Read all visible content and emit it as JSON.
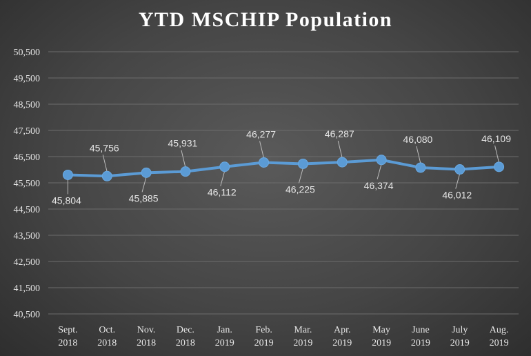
{
  "chart_data": {
    "type": "line",
    "title": "YTD MSCHIP Population",
    "categories": [
      [
        "Sept.",
        "2018"
      ],
      [
        "Oct.",
        "2018"
      ],
      [
        "Nov.",
        "2018"
      ],
      [
        "Dec.",
        "2018"
      ],
      [
        "Jan.",
        "2019"
      ],
      [
        "Feb.",
        "2019"
      ],
      [
        "Mar.",
        "2019"
      ],
      [
        "Apr.",
        "2019"
      ],
      [
        "May",
        "2019"
      ],
      [
        "June",
        "2019"
      ],
      [
        "July",
        "2019"
      ],
      [
        "Aug.",
        "2019"
      ]
    ],
    "series": [
      {
        "values": [
          45804,
          45756,
          45885,
          45931,
          46112,
          46277,
          46225,
          46287,
          46374,
          46080,
          46012,
          46109
        ],
        "data_labels": [
          "45,804",
          "45,756",
          "45,885",
          "45,931",
          "46,112",
          "46,277",
          "46,225",
          "46,287",
          "46,374",
          "46,080",
          "46,012",
          "46,109"
        ]
      }
    ],
    "ylim": [
      40500,
      50500
    ],
    "y_ticks": [
      "40,500",
      "41,500",
      "42,500",
      "43,500",
      "44,500",
      "45,500",
      "46,500",
      "47,500",
      "48,500",
      "49,500",
      "50,500"
    ],
    "grid": true,
    "legend": false,
    "colors": {
      "line": "#5b9bd5",
      "background": "#454545",
      "text": "#e6e6e6"
    }
  }
}
